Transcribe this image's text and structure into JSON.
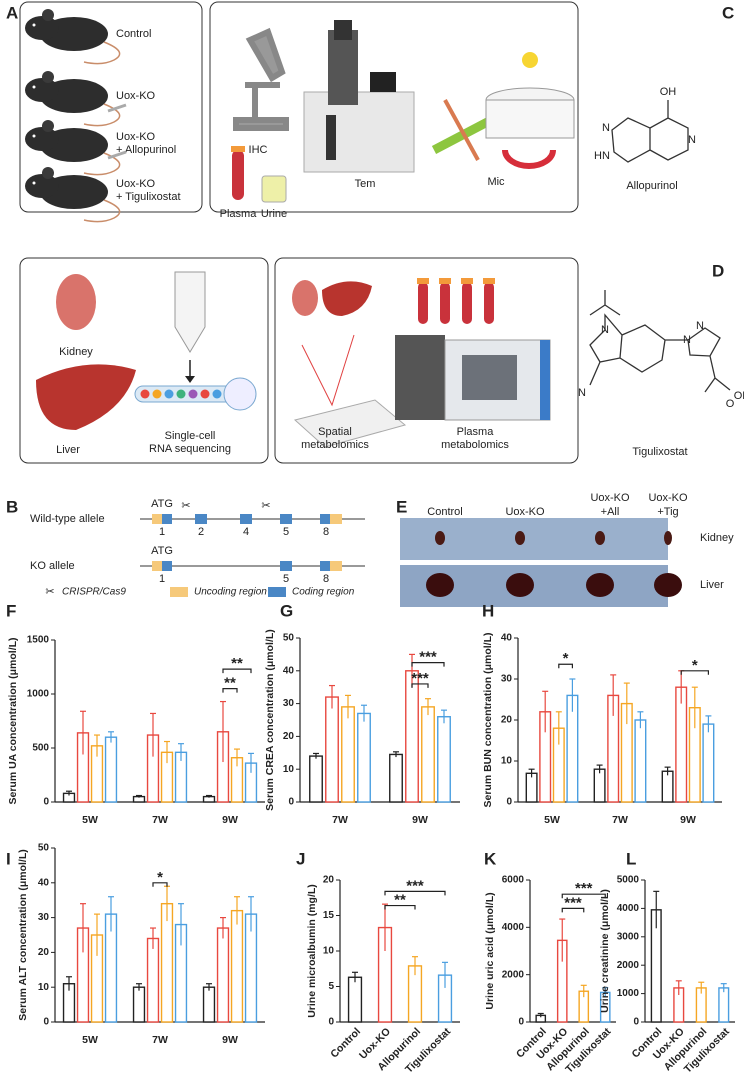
{
  "panels": {
    "a": {
      "letter": "A",
      "groups": [
        [
          "Control"
        ],
        [
          "Uox-KO"
        ],
        [
          "Uox-KO",
          "+ Allopurinol"
        ],
        [
          "Uox-KO",
          "+ Tigulixostat"
        ]
      ],
      "methods": [
        "IHC",
        "Tem",
        "Mic",
        "Plasma",
        "Urine"
      ]
    },
    "sc": {
      "organs": [
        "Kidney",
        "Liver"
      ],
      "method": [
        "Single-cell",
        "RNA sequencing"
      ]
    },
    "metab": {
      "spatial": [
        "Spatial",
        "metabolomics"
      ],
      "plasma": [
        "Plasma",
        "metabolomics"
      ]
    },
    "b": {
      "letter": "B",
      "wild_type": "Wild-type allele",
      "ko": "KO allele",
      "atg": "ATG",
      "wt_exons": [
        "1",
        "2",
        "4",
        "5",
        "8"
      ],
      "ko_exons": [
        "1",
        "5",
        "8"
      ],
      "legend": [
        "CRISPR/Cas9",
        "Uncoding region",
        "Coding region"
      ]
    },
    "c": {
      "letter": "C",
      "atoms": [
        "OH",
        "N",
        "HN",
        "N"
      ],
      "name": "Allopurinol"
    },
    "d": {
      "letter": "D",
      "atoms": [
        "N",
        "N",
        "N",
        "N",
        "O",
        "OH"
      ],
      "name": "Tigulixostat"
    },
    "e": {
      "letter": "E",
      "columns": [
        [
          "Control"
        ],
        [
          "Uox-KO"
        ],
        [
          "Uox-KO",
          "+All"
        ],
        [
          "Uox-KO",
          "+Tig"
        ]
      ],
      "rows": [
        "Kidney",
        "Liver"
      ]
    }
  },
  "chart_data": [
    {
      "type": "bar",
      "panel": "F",
      "y_label": "Serum UA concentration (μmol/L)",
      "categories": [
        "5W",
        "7W",
        "9W"
      ],
      "series": [
        {
          "name": "Control",
          "color": "#222222",
          "values": [
            80,
            50,
            50
          ],
          "errors": [
            20,
            10,
            10
          ]
        },
        {
          "name": "Uox-KO",
          "color": "#e8483f",
          "values": [
            640,
            620,
            650
          ],
          "errors": [
            200,
            200,
            280
          ]
        },
        {
          "name": "Allopurinol",
          "color": "#f5a623",
          "values": [
            520,
            460,
            410
          ],
          "errors": [
            100,
            100,
            80
          ]
        },
        {
          "name": "Tigulixostat",
          "color": "#4a9ee0",
          "values": [
            600,
            460,
            360
          ],
          "errors": [
            50,
            80,
            90
          ]
        }
      ],
      "ylim": [
        0,
        1500
      ],
      "yticks": [
        0,
        500,
        1000,
        1500
      ],
      "annotations": [
        "**",
        "**"
      ]
    },
    {
      "type": "bar",
      "panel": "G",
      "y_label": "Serum CREA concentration (μmol/L)",
      "categories": [
        "7W",
        "9W"
      ],
      "series": [
        {
          "name": "Control",
          "color": "#222222",
          "values": [
            14,
            14.5
          ],
          "errors": [
            0.8,
            0.8
          ]
        },
        {
          "name": "Uox-KO",
          "color": "#e8483f",
          "values": [
            32,
            40
          ],
          "errors": [
            3.5,
            5
          ]
        },
        {
          "name": "Allopurinol",
          "color": "#f5a623",
          "values": [
            29,
            29
          ],
          "errors": [
            3.5,
            2.5
          ]
        },
        {
          "name": "Tigulixostat",
          "color": "#4a9ee0",
          "values": [
            27,
            26
          ],
          "errors": [
            2.5,
            2
          ]
        }
      ],
      "ylim": [
        0,
        50
      ],
      "yticks": [
        0,
        10,
        20,
        30,
        40,
        50
      ],
      "annotations": [
        "***",
        "***"
      ]
    },
    {
      "type": "bar",
      "panel": "H",
      "y_label": "Serum BUN concentration (μmol/L)",
      "categories": [
        "5W",
        "7W",
        "9W"
      ],
      "series": [
        {
          "name": "Control",
          "color": "#222222",
          "values": [
            7,
            8,
            7.5
          ],
          "errors": [
            1,
            1,
            1
          ]
        },
        {
          "name": "Uox-KO",
          "color": "#e8483f",
          "values": [
            22,
            26,
            28
          ],
          "errors": [
            5,
            5,
            4
          ]
        },
        {
          "name": "Allopurinol",
          "color": "#f5a623",
          "values": [
            18,
            24,
            23
          ],
          "errors": [
            4,
            5,
            5
          ]
        },
        {
          "name": "Tigulixostat",
          "color": "#4a9ee0",
          "values": [
            26,
            20,
            19
          ],
          "errors": [
            4,
            2,
            2
          ]
        }
      ],
      "ylim": [
        0,
        40
      ],
      "yticks": [
        0,
        10,
        20,
        30,
        40
      ],
      "annotations": [
        "*",
        "*"
      ]
    },
    {
      "type": "bar",
      "panel": "I",
      "y_label": "Serum ALT concentration (μmol/L)",
      "categories": [
        "5W",
        "7W",
        "9W"
      ],
      "series": [
        {
          "name": "Control",
          "color": "#222222",
          "values": [
            11,
            10,
            10
          ],
          "errors": [
            2,
            1,
            1
          ]
        },
        {
          "name": "Uox-KO",
          "color": "#e8483f",
          "values": [
            27,
            24,
            27
          ],
          "errors": [
            7,
            3,
            3
          ]
        },
        {
          "name": "Allopurinol",
          "color": "#f5a623",
          "values": [
            25,
            34,
            32
          ],
          "errors": [
            6,
            5,
            4
          ]
        },
        {
          "name": "Tigulixostat",
          "color": "#4a9ee0",
          "values": [
            31,
            28,
            31
          ],
          "errors": [
            5,
            6,
            5
          ]
        }
      ],
      "ylim": [
        0,
        50
      ],
      "yticks": [
        0,
        10,
        20,
        30,
        40,
        50
      ],
      "annotations": [
        "*"
      ]
    },
    {
      "type": "bar",
      "panel": "J",
      "y_label": "Urine microalbumin (mg/L)",
      "categories": [
        "Control",
        "Uox-KO",
        "Allopurinol",
        "Tigulixostat"
      ],
      "colors": [
        "#222222",
        "#e8483f",
        "#f5a623",
        "#4a9ee0"
      ],
      "values": [
        6.3,
        13.3,
        7.9,
        6.6
      ],
      "errors": [
        0.7,
        3.3,
        1.3,
        1.8
      ],
      "ylim": [
        0,
        20
      ],
      "yticks": [
        0,
        5,
        10,
        15,
        20
      ],
      "annotations": [
        "**",
        "***"
      ]
    },
    {
      "type": "bar",
      "panel": "K",
      "y_label": "Urine uric acid (μmol/L)",
      "categories": [
        "Control",
        "Uox-KO",
        "Allopurinol",
        "Tigulixostat"
      ],
      "colors": [
        "#222222",
        "#e8483f",
        "#f5a623",
        "#4a9ee0"
      ],
      "values": [
        280,
        3450,
        1300,
        1250
      ],
      "errors": [
        80,
        900,
        250,
        200
      ],
      "ylim": [
        0,
        6000
      ],
      "yticks": [
        0,
        2000,
        4000,
        6000
      ],
      "annotations": [
        "***",
        "***"
      ]
    },
    {
      "type": "bar",
      "panel": "L",
      "y_label": "Urine creatinine (μmol/L)",
      "categories": [
        "Control",
        "Uox-KO",
        "Allopurinol",
        "Tigulixostat"
      ],
      "colors": [
        "#222222",
        "#e8483f",
        "#f5a623",
        "#4a9ee0"
      ],
      "values": [
        3950,
        1200,
        1200,
        1200
      ],
      "errors": [
        650,
        250,
        200,
        150
      ],
      "ylim": [
        0,
        5000
      ],
      "yticks": [
        0,
        1000,
        2000,
        3000,
        4000,
        5000
      ],
      "annotations": []
    }
  ]
}
